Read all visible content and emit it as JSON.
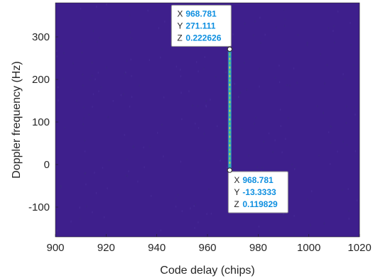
{
  "chart_data": {
    "type": "heatmap",
    "title": "",
    "xlabel": "Code delay (chips)",
    "ylabel": "Doppler frequency (Hz)",
    "xlim": [
      900,
      1020
    ],
    "ylim": [
      -170,
      380
    ],
    "xticks": [
      900,
      920,
      940,
      960,
      980,
      1000,
      1020
    ],
    "yticks": [
      -100,
      0,
      100,
      200,
      300
    ],
    "colormap": "parula",
    "background_color": "#3e1f8c",
    "peak": {
      "x": 968.781,
      "y_range": [
        -13.3333,
        271.111
      ],
      "colors": [
        "#2d8fce",
        "#36b2b0",
        "#8fd151",
        "#d6d04a"
      ]
    },
    "datatips": [
      {
        "x_key": "X",
        "x_value": "968.781",
        "y_key": "Y",
        "y_value": "271.111",
        "z_key": "Z",
        "z_value": "0.222626",
        "x": 968.781,
        "y": 271.111,
        "placement": "above-left"
      },
      {
        "x_key": "X",
        "x_value": "968.781",
        "y_key": "Y",
        "y_value": "-13.3333",
        "z_key": "Z",
        "z_value": "0.119829",
        "x": 968.781,
        "y": -13.3333,
        "placement": "below-right"
      }
    ]
  }
}
